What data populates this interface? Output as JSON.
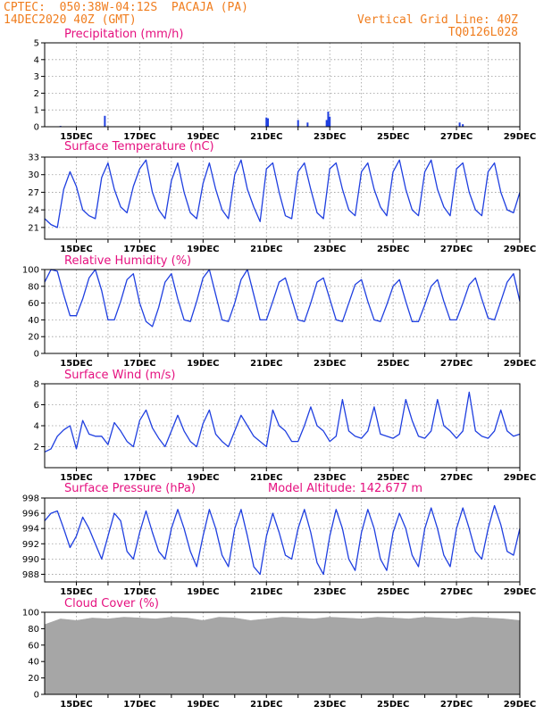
{
  "header": {
    "left_line1": "CPTEC:  050:38W-04:12S  PACAJA (PA)",
    "left_line2": "14DEC2020 40Z (GMT)",
    "right_line1": "Vertical Grid Line: 40Z",
    "right_line2": "TQ0126L028"
  },
  "colors": {
    "header": "#f07d1e",
    "panel_title": "#e5107f",
    "series": "#1f3fe0",
    "cloud": "#a6a6a6",
    "grid": "#9a9a9a",
    "frame": "#000000"
  },
  "x_axis": {
    "start_day": 14,
    "end_day": 29,
    "tick_labels": [
      "15DEC",
      "17DEC",
      "19DEC",
      "21DEC",
      "23DEC",
      "25DEC",
      "27DEC",
      "29DEC"
    ]
  },
  "chart_data": [
    {
      "id": "precip",
      "type": "bar",
      "title": "Precipitation (mm/h)",
      "ylim": [
        0,
        5
      ],
      "yticks": [
        "0",
        "1",
        "2",
        "3",
        "4",
        "5"
      ],
      "grid": true,
      "x": [
        14.5,
        15.9,
        21.0,
        21.05,
        22.0,
        22.3,
        22.9,
        22.95,
        23.0,
        27.1,
        27.2
      ],
      "values": [
        0.05,
        0.65,
        0.55,
        0.5,
        0.4,
        0.25,
        0.4,
        0.9,
        0.6,
        0.25,
        0.15
      ]
    },
    {
      "id": "temp",
      "type": "line",
      "title": "Surface Temperature (nC)",
      "ylim": [
        19,
        33
      ],
      "yticks": [
        "21",
        "24",
        "27",
        "30",
        "33"
      ],
      "grid": true,
      "x": [
        14.0,
        14.2,
        14.4,
        14.6,
        14.8,
        15.0,
        15.2,
        15.4,
        15.6,
        15.8,
        16.0,
        16.2,
        16.4,
        16.6,
        16.8,
        17.0,
        17.2,
        17.4,
        17.6,
        17.8,
        18.0,
        18.2,
        18.4,
        18.6,
        18.8,
        19.0,
        19.2,
        19.4,
        19.6,
        19.8,
        20.0,
        20.2,
        20.4,
        20.6,
        20.8,
        21.0,
        21.2,
        21.4,
        21.6,
        21.8,
        22.0,
        22.2,
        22.4,
        22.6,
        22.8,
        23.0,
        23.2,
        23.4,
        23.6,
        23.8,
        24.0,
        24.2,
        24.4,
        24.6,
        24.8,
        25.0,
        25.2,
        25.4,
        25.6,
        25.8,
        26.0,
        26.2,
        26.4,
        26.6,
        26.8,
        27.0,
        27.2,
        27.4,
        27.6,
        27.8,
        28.0,
        28.2,
        28.4,
        28.6,
        28.8,
        29.0
      ],
      "values": [
        22.5,
        21.5,
        21.0,
        27.5,
        30.5,
        28.0,
        24.0,
        23.0,
        22.5,
        29.5,
        32.0,
        27.5,
        24.5,
        23.5,
        28.0,
        31.0,
        32.5,
        27.0,
        24.0,
        22.5,
        29.0,
        32.0,
        27.0,
        23.5,
        22.5,
        28.5,
        32.0,
        27.5,
        24.0,
        22.5,
        30.0,
        32.5,
        27.5,
        24.5,
        22.0,
        31.0,
        32.0,
        27.0,
        23.0,
        22.5,
        30.5,
        32.0,
        27.5,
        23.5,
        22.5,
        31.0,
        32.0,
        27.5,
        24.0,
        23.0,
        30.5,
        32.0,
        27.5,
        24.5,
        23.0,
        30.5,
        32.5,
        27.5,
        24.0,
        23.0,
        30.5,
        32.5,
        27.5,
        24.5,
        23.0,
        31.0,
        32.0,
        27.0,
        24.0,
        23.0,
        30.5,
        32.0,
        27.0,
        24.0,
        23.5,
        27.0
      ]
    },
    {
      "id": "rh",
      "type": "line",
      "title": "Relative Humidity (%)",
      "ylim": [
        0,
        100
      ],
      "yticks": [
        "0",
        "20",
        "40",
        "60",
        "80",
        "100"
      ],
      "grid": true,
      "x": [
        14.0,
        14.2,
        14.4,
        14.6,
        14.8,
        15.0,
        15.2,
        15.4,
        15.6,
        15.8,
        16.0,
        16.2,
        16.4,
        16.6,
        16.8,
        17.0,
        17.2,
        17.4,
        17.6,
        17.8,
        18.0,
        18.2,
        18.4,
        18.6,
        18.8,
        19.0,
        19.2,
        19.4,
        19.6,
        19.8,
        20.0,
        20.2,
        20.4,
        20.6,
        20.8,
        21.0,
        21.2,
        21.4,
        21.6,
        21.8,
        22.0,
        22.2,
        22.4,
        22.6,
        22.8,
        23.0,
        23.2,
        23.4,
        23.6,
        23.8,
        24.0,
        24.2,
        24.4,
        24.6,
        24.8,
        25.0,
        25.2,
        25.4,
        25.6,
        25.8,
        26.0,
        26.2,
        26.4,
        26.6,
        26.8,
        27.0,
        27.2,
        27.4,
        27.6,
        27.8,
        28.0,
        28.2,
        28.4,
        28.6,
        28.8,
        29.0
      ],
      "values": [
        85,
        100,
        98,
        70,
        45,
        45,
        65,
        90,
        100,
        75,
        40,
        40,
        62,
        88,
        95,
        60,
        38,
        32,
        55,
        85,
        95,
        65,
        40,
        38,
        62,
        90,
        100,
        70,
        40,
        38,
        60,
        88,
        100,
        70,
        40,
        40,
        62,
        85,
        90,
        65,
        40,
        38,
        60,
        85,
        90,
        65,
        40,
        38,
        60,
        82,
        88,
        62,
        40,
        38,
        58,
        80,
        88,
        62,
        38,
        38,
        58,
        80,
        88,
        62,
        40,
        40,
        60,
        82,
        90,
        65,
        42,
        40,
        62,
        85,
        95,
        62
      ]
    },
    {
      "id": "wind",
      "type": "line",
      "title": "Surface Wind (m/s)",
      "ylim": [
        0,
        8
      ],
      "yticks": [
        "2",
        "4",
        "6",
        "8"
      ],
      "grid": true,
      "x": [
        14.0,
        14.2,
        14.4,
        14.6,
        14.8,
        15.0,
        15.2,
        15.4,
        15.6,
        15.8,
        16.0,
        16.2,
        16.4,
        16.6,
        16.8,
        17.0,
        17.2,
        17.4,
        17.6,
        17.8,
        18.0,
        18.2,
        18.4,
        18.6,
        18.8,
        19.0,
        19.2,
        19.4,
        19.6,
        19.8,
        20.0,
        20.2,
        20.4,
        20.6,
        20.8,
        21.0,
        21.2,
        21.4,
        21.6,
        21.8,
        22.0,
        22.2,
        22.4,
        22.6,
        22.8,
        23.0,
        23.2,
        23.4,
        23.6,
        23.8,
        24.0,
        24.2,
        24.4,
        24.6,
        24.8,
        25.0,
        25.2,
        25.4,
        25.6,
        25.8,
        26.0,
        26.2,
        26.4,
        26.6,
        26.8,
        27.0,
        27.2,
        27.4,
        27.6,
        27.8,
        28.0,
        28.2,
        28.4,
        28.6,
        28.8,
        29.0
      ],
      "values": [
        1.5,
        1.8,
        3.0,
        3.6,
        4.0,
        1.8,
        4.5,
        3.2,
        3.0,
        3.0,
        2.2,
        4.3,
        3.5,
        2.5,
        2.0,
        4.5,
        5.5,
        3.8,
        2.8,
        2.0,
        3.5,
        5.0,
        3.5,
        2.5,
        2.0,
        4.2,
        5.5,
        3.2,
        2.5,
        2.0,
        3.5,
        5.0,
        4.0,
        3.0,
        2.5,
        2.0,
        5.5,
        4.0,
        3.5,
        2.5,
        2.5,
        4.0,
        5.8,
        4.0,
        3.5,
        2.5,
        3.0,
        6.5,
        3.5,
        3.0,
        2.8,
        3.5,
        5.8,
        3.2,
        3.0,
        2.8,
        3.2,
        6.5,
        4.5,
        3.0,
        2.8,
        3.5,
        6.5,
        4.0,
        3.5,
        2.8,
        3.5,
        7.2,
        3.5,
        3.0,
        2.8,
        3.5,
        5.5,
        3.5,
        3.0,
        3.2
      ]
    },
    {
      "id": "pres",
      "type": "line",
      "title": "Surface Pressure (hPa)",
      "annotation": "Model Altitude: 142.677 m",
      "ylim": [
        987,
        998
      ],
      "yticks": [
        "988",
        "990",
        "992",
        "994",
        "996",
        "998"
      ],
      "grid": true,
      "x": [
        14.0,
        14.2,
        14.4,
        14.6,
        14.8,
        15.0,
        15.2,
        15.4,
        15.6,
        15.8,
        16.0,
        16.2,
        16.4,
        16.6,
        16.8,
        17.0,
        17.2,
        17.4,
        17.6,
        17.8,
        18.0,
        18.2,
        18.4,
        18.6,
        18.8,
        19.0,
        19.2,
        19.4,
        19.6,
        19.8,
        20.0,
        20.2,
        20.4,
        20.6,
        20.8,
        21.0,
        21.2,
        21.4,
        21.6,
        21.8,
        22.0,
        22.2,
        22.4,
        22.6,
        22.8,
        23.0,
        23.2,
        23.4,
        23.6,
        23.8,
        24.0,
        24.2,
        24.4,
        24.6,
        24.8,
        25.0,
        25.2,
        25.4,
        25.6,
        25.8,
        26.0,
        26.2,
        26.4,
        26.6,
        26.8,
        27.0,
        27.2,
        27.4,
        27.6,
        27.8,
        28.0,
        28.2,
        28.4,
        28.6,
        28.8,
        29.0
      ],
      "values": [
        995,
        996,
        996.3,
        994,
        991.5,
        993,
        995.5,
        994,
        992,
        990,
        993,
        996,
        995,
        991,
        990,
        993.5,
        996.3,
        993.5,
        991,
        990,
        994,
        996.5,
        994,
        991,
        989,
        993,
        996.5,
        994,
        990.5,
        989,
        994,
        996.5,
        993,
        989,
        988,
        993,
        996,
        993.5,
        990.5,
        990,
        994,
        996.5,
        993.5,
        989.5,
        988,
        993,
        996.5,
        994,
        990,
        988.5,
        993.5,
        996.5,
        994,
        990,
        988.5,
        993.5,
        996,
        994,
        990.5,
        989,
        994,
        996.7,
        994,
        990.5,
        989,
        994,
        996.7,
        994,
        991,
        990,
        994,
        997,
        994.5,
        991,
        990.5,
        994
      ]
    },
    {
      "id": "cloud",
      "type": "area",
      "title": "Cloud Cover (%)",
      "ylim": [
        0,
        100
      ],
      "yticks": [
        "0",
        "20",
        "40",
        "60",
        "80",
        "100"
      ],
      "grid": true,
      "x": [
        14.0,
        14.5,
        15.0,
        15.5,
        16.0,
        16.5,
        17.0,
        17.5,
        18.0,
        18.5,
        19.0,
        19.5,
        20.0,
        20.5,
        21.0,
        21.5,
        22.0,
        22.5,
        23.0,
        23.5,
        24.0,
        24.5,
        25.0,
        25.5,
        26.0,
        26.5,
        27.0,
        27.5,
        28.0,
        28.5,
        29.0
      ],
      "values": [
        85,
        92,
        90,
        93,
        92,
        94,
        93,
        92,
        94,
        93,
        90,
        94,
        93,
        90,
        92,
        94,
        93,
        92,
        94,
        93,
        92,
        94,
        93,
        92,
        94,
        93,
        92,
        94,
        93,
        92,
        90
      ]
    }
  ]
}
